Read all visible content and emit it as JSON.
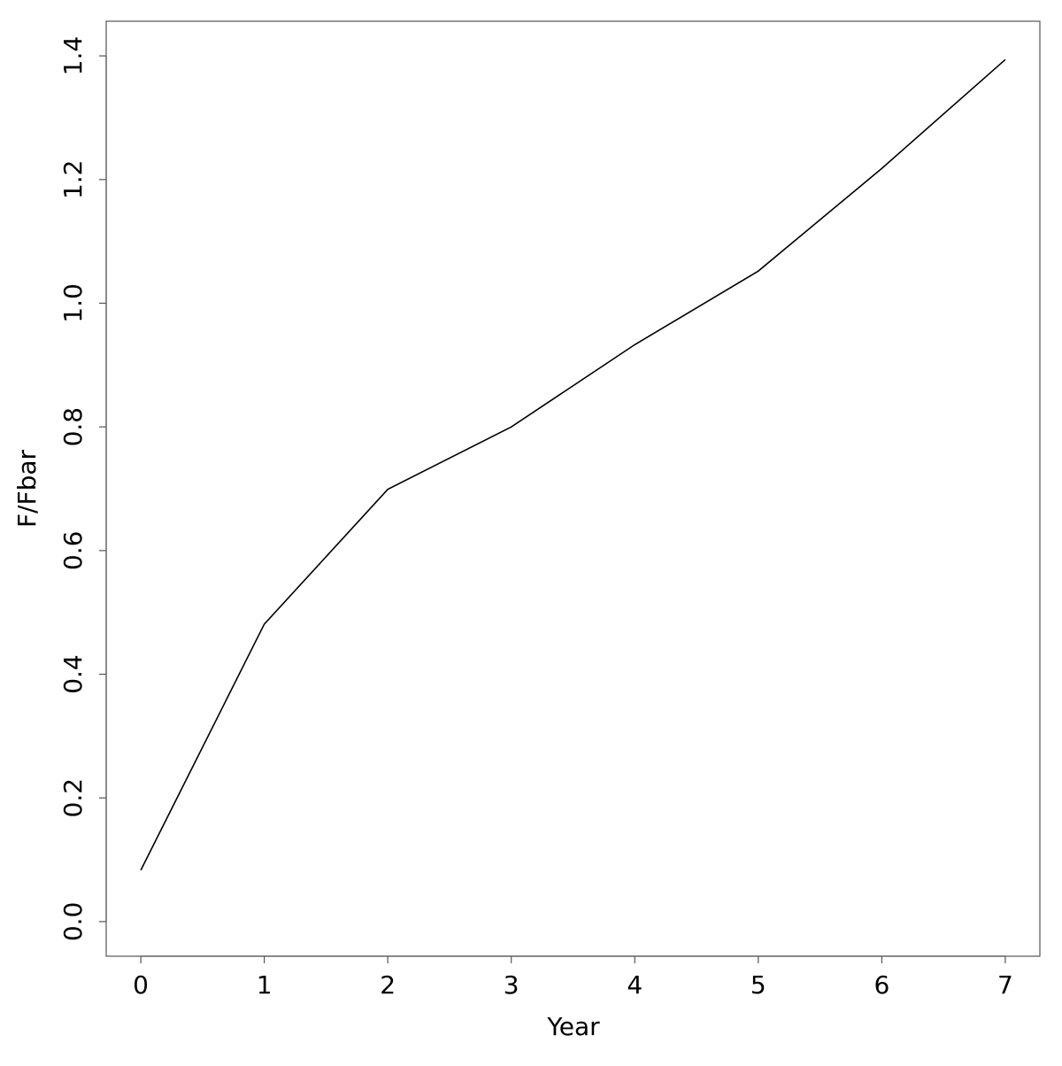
{
  "chart_data": {
    "type": "line",
    "x_label": "Year",
    "y_label": "F/Fbar",
    "x": [
      0,
      1,
      2,
      3,
      4,
      5,
      6,
      7
    ],
    "series": [
      {
        "color": "#000000",
        "values": [
          0.083,
          0.481,
          0.699,
          0.8,
          0.933,
          1.052,
          1.218,
          1.394
        ]
      }
    ],
    "xlim": [
      -0.28,
      7.28
    ],
    "ylim": [
      -0.056,
      1.456
    ],
    "xticks": [
      0,
      1,
      2,
      3,
      4,
      5,
      6,
      7
    ],
    "yticks": [
      {
        "value": 0,
        "label": "0.0"
      },
      {
        "value": 0.2,
        "label": "0.2"
      },
      {
        "value": 0.4,
        "label": "0.4"
      },
      {
        "value": 0.6,
        "label": "0.6"
      },
      {
        "value": 0.8,
        "label": "0.8"
      },
      {
        "value": 1,
        "label": "1.0"
      },
      {
        "value": 1.2,
        "label": "1.2"
      },
      {
        "value": 1.4,
        "label": "1.4"
      }
    ]
  }
}
